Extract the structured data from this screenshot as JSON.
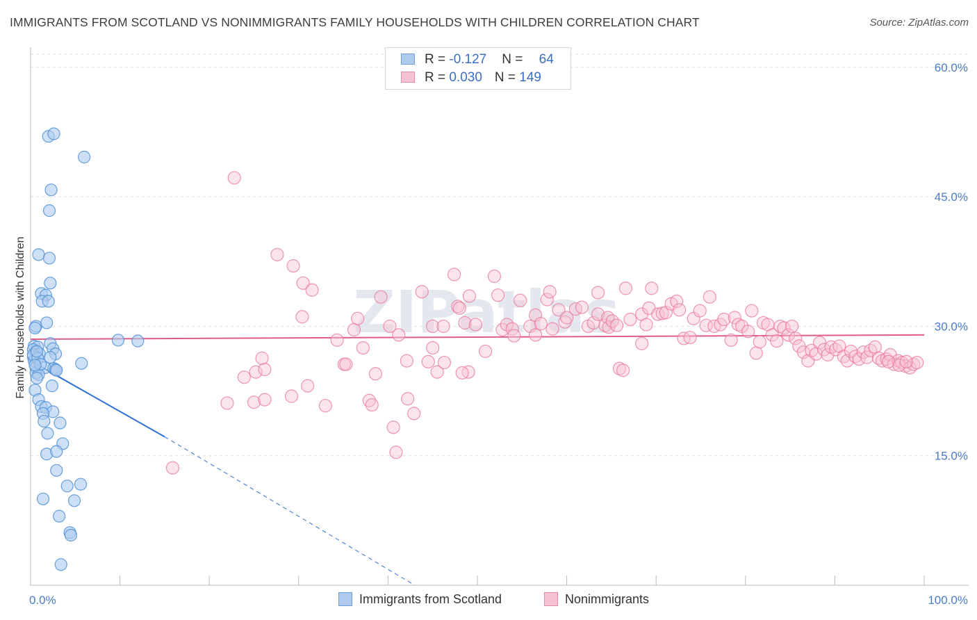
{
  "title": "IMMIGRANTS FROM SCOTLAND VS NONIMMIGRANTS FAMILY HOUSEHOLDS WITH CHILDREN CORRELATION CHART",
  "source": "Source: ZipAtlas.com",
  "watermark": "ZIPatlas",
  "colors": {
    "blue": "#4f8fd6",
    "blue_fill": "#aecbee",
    "pink": "#e8749a",
    "pink_fill": "#f6c3d3",
    "blue_line": "#2f6fd1",
    "pink_line": "#e05c88",
    "tick_text": "#4a7cc7"
  },
  "legend": {
    "rows": [
      {
        "r_label": "R = ",
        "r_value": "-0.127",
        "n_label": "N = ",
        "n_value": "64"
      },
      {
        "r_label": "R = ",
        "r_value": "0.030",
        "n_label": "N = ",
        "n_value": "149"
      }
    ]
  },
  "bottom_legend": [
    "Immigrants from Scotland",
    "Nonimmigrants"
  ],
  "chart_data": {
    "type": "scatter",
    "xlabel": "",
    "ylabel": "Family Households with Children",
    "xlim": [
      0,
      100
    ],
    "ylim": [
      0,
      62
    ],
    "x_tick_labels": [
      "0.0%",
      "100.0%"
    ],
    "y_ticks": [
      15,
      30,
      45,
      60
    ],
    "y_tick_labels": [
      "15.0%",
      "30.0%",
      "45.0%",
      "60.0%"
    ],
    "grid": true,
    "legend_position": "top-center",
    "series": [
      {
        "name": "Immigrants from Scotland",
        "color": "#4f8fd6",
        "trend": {
          "x0": 0,
          "y0": 26.0,
          "x1": 15,
          "y1": 17.2,
          "dashed_to_x": 43,
          "dashed_to_y": 0
        },
        "points": [
          [
            2.0,
            52.0
          ],
          [
            2.6,
            52.3
          ],
          [
            6.0,
            49.6
          ],
          [
            2.3,
            45.8
          ],
          [
            2.1,
            43.4
          ],
          [
            0.9,
            38.3
          ],
          [
            2.1,
            37.9
          ],
          [
            2.2,
            35.0
          ],
          [
            1.2,
            33.8
          ],
          [
            1.7,
            33.6
          ],
          [
            1.3,
            32.9
          ],
          [
            2.0,
            32.9
          ],
          [
            1.8,
            30.4
          ],
          [
            0.6,
            30.0
          ],
          [
            0.5,
            29.8
          ],
          [
            2.2,
            28.0
          ],
          [
            0.4,
            27.7
          ],
          [
            0.8,
            27.6
          ],
          [
            0.3,
            27.3
          ],
          [
            2.5,
            27.4
          ],
          [
            0.6,
            27.0
          ],
          [
            1.0,
            26.8
          ],
          [
            2.8,
            26.8
          ],
          [
            0.3,
            26.5
          ],
          [
            2.2,
            26.4
          ],
          [
            0.4,
            26.0
          ],
          [
            0.6,
            25.2
          ],
          [
            1.6,
            25.2
          ],
          [
            2.6,
            25.1
          ],
          [
            2.8,
            25.0
          ],
          [
            0.6,
            24.6
          ],
          [
            0.9,
            24.4
          ],
          [
            0.7,
            24.0
          ],
          [
            2.4,
            23.1
          ],
          [
            0.5,
            22.6
          ],
          [
            0.9,
            21.5
          ],
          [
            1.2,
            20.7
          ],
          [
            1.7,
            20.6
          ],
          [
            2.5,
            20.1
          ],
          [
            1.4,
            19.9
          ],
          [
            1.5,
            19.0
          ],
          [
            3.3,
            18.8
          ],
          [
            1.9,
            17.6
          ],
          [
            3.6,
            16.4
          ],
          [
            1.8,
            15.2
          ],
          [
            2.9,
            15.5
          ],
          [
            2.9,
            13.3
          ],
          [
            4.1,
            11.5
          ],
          [
            5.6,
            11.7
          ],
          [
            1.4,
            10.0
          ],
          [
            4.9,
            9.8
          ],
          [
            3.2,
            8.0
          ],
          [
            4.4,
            6.1
          ],
          [
            4.5,
            5.8
          ],
          [
            3.4,
            2.4
          ],
          [
            9.8,
            28.4
          ],
          [
            12.0,
            28.3
          ],
          [
            5.7,
            25.7
          ],
          [
            0.3,
            26.7
          ],
          [
            0.8,
            26.3
          ],
          [
            1.1,
            25.6
          ],
          [
            2.9,
            24.9
          ],
          [
            0.5,
            25.5
          ],
          [
            0.7,
            27.1
          ]
        ]
      },
      {
        "name": "Nonimmigrants",
        "color": "#e8749a",
        "trend": {
          "x0": 0,
          "y0": 28.5,
          "x1": 100,
          "y1": 29.0
        },
        "points": [
          [
            22.8,
            47.2
          ],
          [
            27.6,
            38.3
          ],
          [
            29.4,
            37.0
          ],
          [
            30.5,
            35.0
          ],
          [
            31.5,
            34.2
          ],
          [
            30.4,
            31.1
          ],
          [
            23.9,
            24.1
          ],
          [
            25.2,
            24.7
          ],
          [
            26.2,
            25.0
          ],
          [
            25.9,
            26.3
          ],
          [
            22.0,
            21.1
          ],
          [
            25.0,
            21.2
          ],
          [
            26.2,
            21.5
          ],
          [
            29.2,
            21.9
          ],
          [
            31.0,
            23.1
          ],
          [
            33.0,
            20.8
          ],
          [
            35.1,
            25.6
          ],
          [
            35.3,
            25.6
          ],
          [
            36.2,
            29.6
          ],
          [
            36.6,
            30.9
          ],
          [
            34.3,
            28.4
          ],
          [
            37.2,
            27.5
          ],
          [
            38.6,
            24.5
          ],
          [
            37.9,
            21.4
          ],
          [
            38.2,
            20.9
          ],
          [
            39.2,
            33.4
          ],
          [
            40.2,
            30.0
          ],
          [
            41.2,
            29.0
          ],
          [
            42.1,
            26.0
          ],
          [
            43.8,
            34.0
          ],
          [
            44.5,
            25.9
          ],
          [
            45.0,
            27.5
          ],
          [
            45.0,
            30.0
          ],
          [
            45.5,
            24.7
          ],
          [
            46.2,
            30.0
          ],
          [
            46.3,
            25.8
          ],
          [
            47.4,
            36.0
          ],
          [
            47.8,
            32.3
          ],
          [
            48.6,
            30.4
          ],
          [
            49.1,
            33.5
          ],
          [
            49.8,
            30.2
          ],
          [
            49.0,
            24.7
          ],
          [
            48.0,
            32.1
          ],
          [
            50.9,
            27.1
          ],
          [
            51.9,
            35.8
          ],
          [
            52.3,
            33.6
          ],
          [
            52.8,
            29.6
          ],
          [
            53.3,
            30.2
          ],
          [
            53.9,
            29.7
          ],
          [
            54.1,
            28.9
          ],
          [
            54.8,
            33.0
          ],
          [
            55.9,
            30.0
          ],
          [
            56.5,
            29.0
          ],
          [
            56.5,
            31.3
          ],
          [
            57.1,
            30.3
          ],
          [
            57.8,
            33.1
          ],
          [
            58.1,
            34.0
          ],
          [
            58.4,
            29.7
          ],
          [
            59.1,
            31.9
          ],
          [
            59.8,
            30.5
          ],
          [
            60.0,
            31.0
          ],
          [
            61.0,
            32.0
          ],
          [
            61.7,
            32.2
          ],
          [
            62.4,
            30.0
          ],
          [
            63.0,
            30.4
          ],
          [
            63.5,
            31.4
          ],
          [
            63.5,
            33.9
          ],
          [
            64.3,
            30.1
          ],
          [
            64.6,
            31.0
          ],
          [
            64.7,
            29.9
          ],
          [
            65.1,
            30.6
          ],
          [
            65.6,
            30.1
          ],
          [
            65.9,
            25.1
          ],
          [
            66.3,
            24.9
          ],
          [
            66.6,
            34.4
          ],
          [
            67.1,
            30.8
          ],
          [
            68.4,
            31.4
          ],
          [
            68.4,
            28.0
          ],
          [
            68.9,
            30.2
          ],
          [
            69.2,
            32.1
          ],
          [
            69.5,
            34.4
          ],
          [
            70.2,
            31.4
          ],
          [
            70.7,
            31.5
          ],
          [
            71.1,
            31.6
          ],
          [
            71.7,
            32.6
          ],
          [
            72.3,
            32.9
          ],
          [
            72.6,
            31.9
          ],
          [
            73.1,
            28.6
          ],
          [
            73.8,
            28.7
          ],
          [
            74.2,
            30.9
          ],
          [
            74.9,
            31.8
          ],
          [
            75.6,
            30.1
          ],
          [
            76.0,
            33.4
          ],
          [
            76.5,
            30.0
          ],
          [
            77.2,
            30.2
          ],
          [
            77.6,
            30.8
          ],
          [
            78.4,
            28.4
          ],
          [
            78.8,
            31.0
          ],
          [
            79.2,
            30.2
          ],
          [
            79.6,
            30.0
          ],
          [
            80.3,
            29.4
          ],
          [
            80.7,
            31.8
          ],
          [
            81.2,
            26.9
          ],
          [
            81.6,
            28.2
          ],
          [
            82.0,
            30.4
          ],
          [
            82.5,
            30.2
          ],
          [
            83.0,
            29.0
          ],
          [
            83.5,
            28.3
          ],
          [
            83.9,
            30.0
          ],
          [
            84.3,
            29.8
          ],
          [
            84.8,
            29.0
          ],
          [
            85.2,
            30.0
          ],
          [
            85.6,
            28.6
          ],
          [
            86.0,
            27.7
          ],
          [
            86.5,
            27.0
          ],
          [
            87.0,
            26.0
          ],
          [
            87.4,
            27.2
          ],
          [
            87.9,
            26.8
          ],
          [
            88.3,
            28.1
          ],
          [
            88.8,
            27.3
          ],
          [
            89.2,
            26.7
          ],
          [
            89.6,
            27.6
          ],
          [
            90.1,
            27.3
          ],
          [
            90.5,
            27.7
          ],
          [
            91.0,
            26.5
          ],
          [
            91.4,
            26.0
          ],
          [
            91.8,
            27.1
          ],
          [
            92.3,
            26.5
          ],
          [
            92.7,
            26.2
          ],
          [
            93.2,
            27.0
          ],
          [
            93.6,
            26.4
          ],
          [
            94.0,
            27.2
          ],
          [
            94.5,
            27.6
          ],
          [
            94.9,
            26.3
          ],
          [
            95.3,
            26.0
          ],
          [
            95.8,
            26.2
          ],
          [
            96.2,
            26.7
          ],
          [
            96.6,
            25.6
          ],
          [
            97.1,
            26.0
          ],
          [
            97.5,
            25.8
          ],
          [
            97.9,
            25.4
          ],
          [
            98.4,
            25.2
          ],
          [
            98.8,
            25.6
          ],
          [
            99.2,
            25.8
          ],
          [
            96.0,
            25.9
          ],
          [
            97.2,
            25.5
          ],
          [
            98.0,
            25.9
          ],
          [
            15.9,
            13.6
          ],
          [
            40.6,
            18.3
          ],
          [
            40.9,
            15.4
          ],
          [
            42.2,
            21.6
          ],
          [
            42.9,
            19.9
          ],
          [
            48.3,
            24.6
          ]
        ]
      }
    ]
  }
}
